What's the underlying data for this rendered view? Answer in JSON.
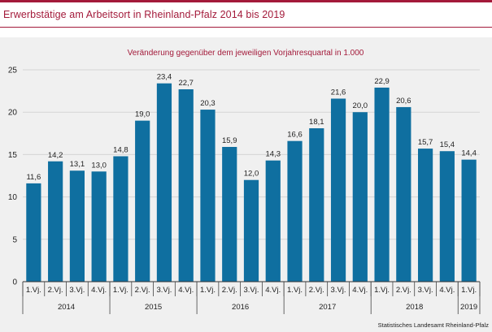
{
  "header": {
    "title": "Erwerbstätige  am  Arbeitsort  in Rheinland-Pfalz  2014  bis 2019"
  },
  "colors": {
    "accent": "#a31a3a",
    "bar": "#0f6fa0",
    "background": "#f0f0f0"
  },
  "chart_data": {
    "type": "bar",
    "title": "",
    "subtitle": "Veränderung  gegenüber  dem jeweiligen  Vorjahresquartal  in 1.000",
    "xlabel": "",
    "ylabel": "",
    "ylim": [
      0,
      25
    ],
    "yticks": [
      0,
      5,
      10,
      15,
      20,
      25
    ],
    "grid": true,
    "legend": "none",
    "categories": [
      "1.Vj.",
      "2.Vj.",
      "3.Vj.",
      "4.Vj.",
      "1.Vj.",
      "2.Vj.",
      "3.Vj.",
      "4.Vj.",
      "1.Vj.",
      "2.Vj.",
      "3.Vj.",
      "4.Vj.",
      "1.Vj.",
      "2.Vj.",
      "3.Vj.",
      "4.Vj.",
      "1.Vj.",
      "2.Vj.",
      "3.Vj.",
      "4.Vj.",
      "1.Vj."
    ],
    "years": [
      {
        "label": "2014",
        "count": 4
      },
      {
        "label": "2015",
        "count": 4
      },
      {
        "label": "2016",
        "count": 4
      },
      {
        "label": "2017",
        "count": 4
      },
      {
        "label": "2018",
        "count": 4
      },
      {
        "label": "2019",
        "count": 1
      }
    ],
    "values": [
      11.6,
      14.2,
      13.1,
      13.0,
      14.8,
      19.0,
      23.4,
      22.7,
      20.3,
      15.9,
      12.0,
      14.3,
      16.6,
      18.1,
      21.6,
      20.0,
      22.9,
      20.6,
      15.7,
      15.4,
      14.4
    ],
    "value_labels": [
      "11,6",
      "14,2",
      "13,1",
      "13,0",
      "14,8",
      "19,0",
      "23,4",
      "22,7",
      "20,3",
      "15,9",
      "12,0",
      "14,3",
      "16,6",
      "18,1",
      "21,6",
      "20,0",
      "22,9",
      "20,6",
      "15,7",
      "15,4",
      "14,4"
    ],
    "source": "Statistisches Landesamt Rheinland-Pfalz"
  }
}
